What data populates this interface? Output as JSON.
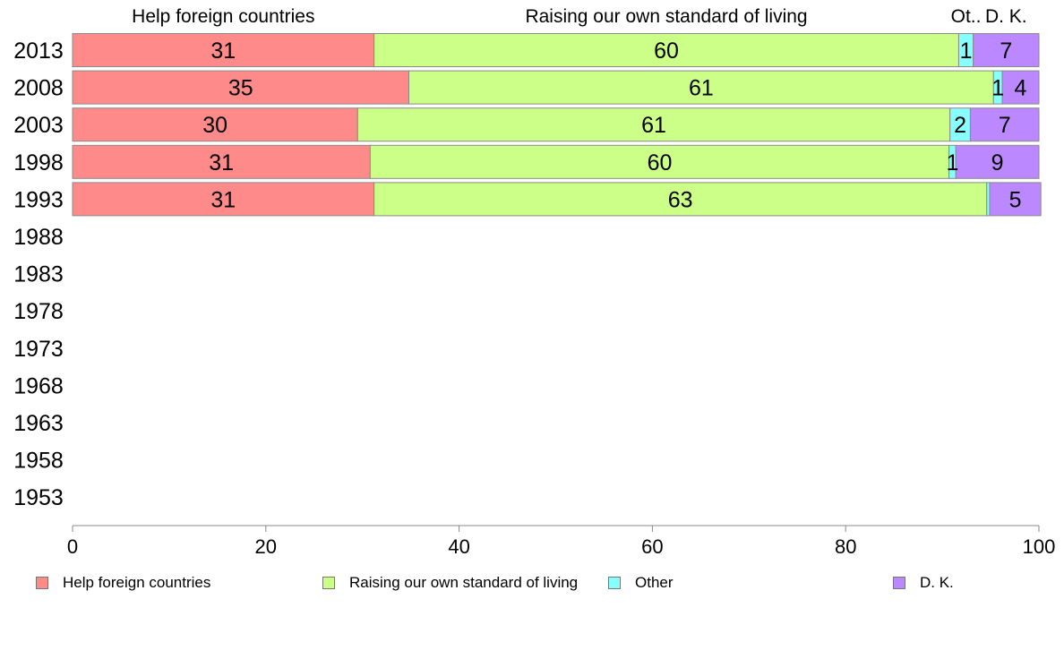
{
  "chart_data": {
    "type": "bar",
    "orientation": "horizontal",
    "stacked": true,
    "categories": [
      "2013",
      "2008",
      "2003",
      "1998",
      "1993",
      "1988",
      "1983",
      "1978",
      "1973",
      "1968",
      "1963",
      "1958",
      "1953"
    ],
    "series": [
      {
        "name": "Help foreign countries",
        "header": "Help foreign countries",
        "color": "#ff8a8a",
        "values": [
          31.2,
          34.8,
          29.5,
          30.8,
          31.2,
          null,
          null,
          null,
          null,
          null,
          null,
          null,
          null
        ],
        "labels": [
          "31",
          "35",
          "30",
          "31",
          "31",
          "",
          "",
          "",
          "",
          "",
          "",
          "",
          ""
        ]
      },
      {
        "name": "Raising our own standard of living",
        "header": "Raising our own standard of living",
        "color": "#ccff88",
        "values": [
          60.5,
          60.5,
          61.3,
          59.9,
          63.4,
          null,
          null,
          null,
          null,
          null,
          null,
          null,
          null
        ],
        "labels": [
          "60",
          "61",
          "61",
          "60",
          "63",
          "",
          "",
          "",
          "",
          "",
          "",
          "",
          ""
        ]
      },
      {
        "name": "Other",
        "header": "Ot..",
        "color": "#88ffff",
        "values": [
          1.5,
          0.9,
          2.1,
          0.7,
          0.3,
          null,
          null,
          null,
          null,
          null,
          null,
          null,
          null
        ],
        "labels": [
          "1",
          "1",
          "2",
          "1",
          "",
          "",
          "",
          "",
          "",
          "",
          "",
          "",
          ""
        ]
      },
      {
        "name": "D. K.",
        "header": "D. K.",
        "color": "#bb88ff",
        "values": [
          6.8,
          3.8,
          7.1,
          8.6,
          5.3,
          null,
          null,
          null,
          null,
          null,
          null,
          null,
          null
        ],
        "labels": [
          "7",
          "4",
          "7",
          "9",
          "5",
          "",
          "",
          "",
          "",
          "",
          "",
          "",
          ""
        ]
      }
    ],
    "xlim": [
      0,
      100
    ],
    "xticks": [
      0,
      20,
      40,
      60,
      80,
      100
    ],
    "legend_position": "bottom",
    "grid": false
  }
}
